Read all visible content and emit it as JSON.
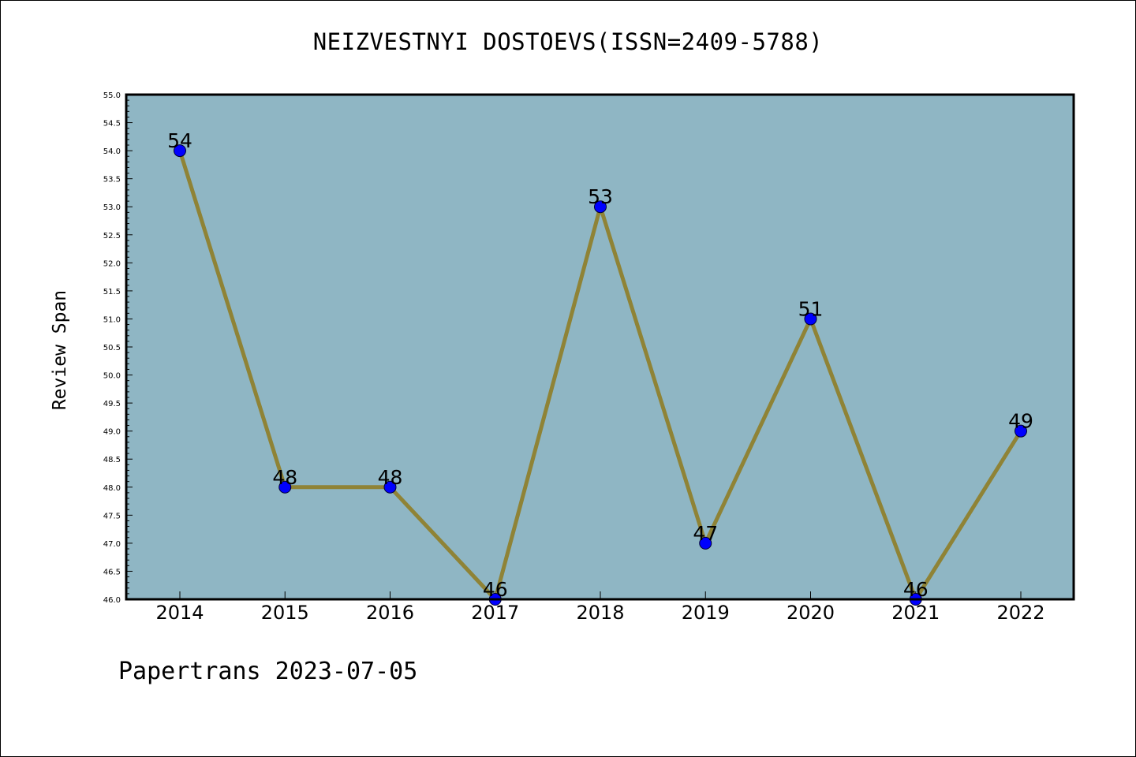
{
  "chart_data": {
    "type": "line",
    "title": "NEIZVESTNYI DOSTOEVS(ISSN=2409-5788)",
    "xlabel": "",
    "ylabel": "Review Span",
    "x": [
      "2014",
      "2015",
      "2016",
      "2017",
      "2018",
      "2019",
      "2020",
      "2021",
      "2022"
    ],
    "series": [
      {
        "values": [
          54,
          48,
          48,
          46,
          53,
          47,
          51,
          46,
          49
        ]
      }
    ],
    "data_labels": [
      "54",
      "48",
      "48",
      "46",
      "53",
      "47",
      "51",
      "46",
      "49"
    ],
    "ylim": [
      46.0,
      55.0
    ],
    "yticks": [
      "46.0",
      "46.5",
      "47.0",
      "47.5",
      "48.0",
      "48.5",
      "49.0",
      "49.5",
      "50.0",
      "50.5",
      "51.0",
      "51.5",
      "52.0",
      "52.5",
      "53.0",
      "53.5",
      "54.0",
      "54.5",
      "55.0"
    ],
    "grid": false,
    "colors": {
      "plot_background": "#8fb6c4",
      "line": "#8f8336",
      "marker": "#0000ff"
    }
  },
  "footer": "Papertrans 2023-07-05"
}
